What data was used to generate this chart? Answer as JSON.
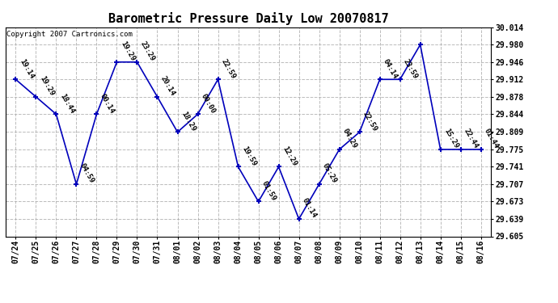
{
  "title": "Barometric Pressure Daily Low 20070817",
  "copyright": "Copyright 2007 Cartronics.com",
  "x_labels": [
    "07/24",
    "07/25",
    "07/26",
    "07/27",
    "07/28",
    "07/29",
    "07/30",
    "07/31",
    "08/01",
    "08/02",
    "08/03",
    "08/04",
    "08/05",
    "08/06",
    "08/07",
    "08/08",
    "08/09",
    "08/10",
    "08/11",
    "08/12",
    "08/13",
    "08/14",
    "08/15",
    "08/16"
  ],
  "x_indices": [
    0,
    1,
    2,
    3,
    4,
    5,
    6,
    7,
    8,
    9,
    10,
    11,
    12,
    13,
    14,
    15,
    16,
    17,
    18,
    19,
    20,
    21,
    22,
    23
  ],
  "y_values": [
    29.912,
    29.878,
    29.844,
    29.707,
    29.844,
    29.946,
    29.946,
    29.878,
    29.809,
    29.844,
    29.912,
    29.741,
    29.673,
    29.741,
    29.639,
    29.707,
    29.775,
    29.809,
    29.912,
    29.912,
    29.98,
    29.775,
    29.775,
    29.775
  ],
  "point_labels": [
    "19:14",
    "19:29",
    "18:44",
    "04:59",
    "00:14",
    "19:29",
    "23:29",
    "20:14",
    "18:29",
    "00:00",
    "22:59",
    "19:59",
    "01:59",
    "12:29",
    "01:14",
    "05:29",
    "04:29",
    "22:59",
    "04:14",
    "23:59",
    "15:29",
    "22:44",
    "01:44"
  ],
  "point_label_indices": [
    0,
    1,
    2,
    3,
    4,
    5,
    6,
    7,
    8,
    9,
    10,
    11,
    12,
    13,
    14,
    15,
    16,
    17,
    18,
    19,
    21,
    22,
    23
  ],
  "ylim_min": 29.605,
  "ylim_max": 30.014,
  "yticks": [
    29.605,
    29.639,
    29.673,
    29.707,
    29.741,
    29.775,
    29.809,
    29.844,
    29.878,
    29.912,
    29.946,
    29.98,
    30.014
  ],
  "line_color": "#0000bb",
  "background_color": "#ffffff",
  "grid_color": "#aaaaaa",
  "title_fontsize": 11,
  "label_fontsize": 6.5,
  "tick_fontsize": 7,
  "copyright_fontsize": 6.5
}
